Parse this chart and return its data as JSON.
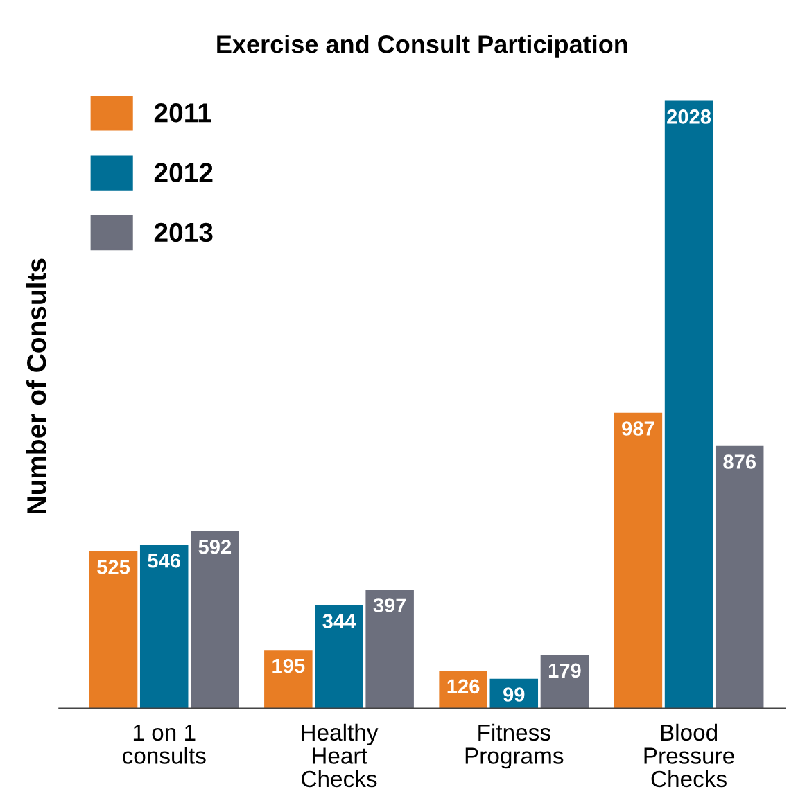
{
  "chart_data": {
    "type": "bar",
    "title": "Exercise and Consult Participation",
    "ylabel": "Number of Consults",
    "categories": [
      "1 on 1\nconsults",
      "Healthy\nHeart\nChecks",
      "Fitness\nPrograms",
      "Blood\nPressure\nChecks"
    ],
    "series": [
      {
        "name": "2011",
        "color": "#e87d24",
        "values": [
          525,
          195,
          126,
          987
        ]
      },
      {
        "name": "2012",
        "color": "#006f96",
        "values": [
          546,
          344,
          99,
          2028
        ]
      },
      {
        "name": "2013",
        "color": "#6c6f7d",
        "values": [
          592,
          397,
          179,
          876
        ]
      }
    ],
    "data_labels": true,
    "legend": "top left",
    "grid": false
  }
}
